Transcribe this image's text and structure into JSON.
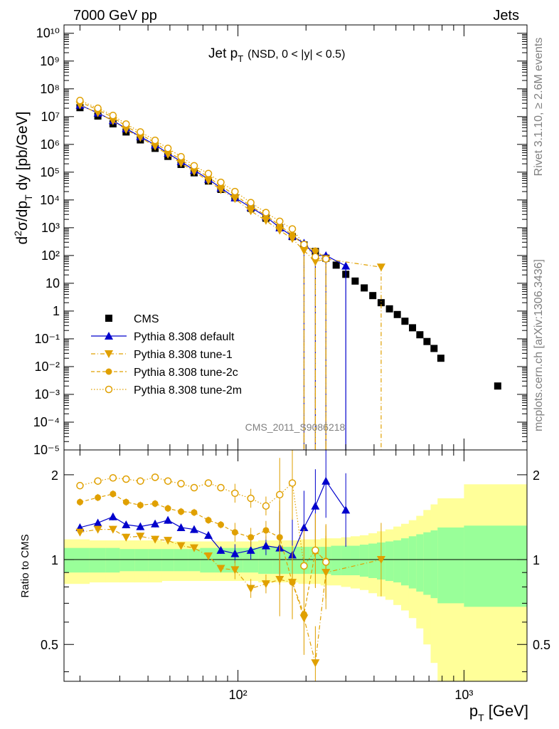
{
  "header": {
    "left": "7000 GeV pp",
    "right": "Jets"
  },
  "side_labels": {
    "rivet": "Rivet 3.1.10, ≥ 2.6M events",
    "mcplots": "mcplots.cern.ch [arXiv:1306.3436]"
  },
  "watermark": "CMS_2011_S9086218",
  "chart_data": [
    {
      "type": "scatter",
      "title": "Jet p_T (NSD, 0 < |y| < 0.5)",
      "title_main": "Jet p",
      "title_sub": "T",
      "title_rest": "(NSD,   0 < |y| < 0.5)",
      "ylabel": "d²σ/dp_T dy [pb/GeV]",
      "xlabel": "p_T [GeV]",
      "xscale": "log",
      "yscale": "log",
      "xlim": [
        17,
        1900
      ],
      "ylim": [
        1e-05,
        20000000000.0
      ],
      "y_tick_labels": [
        "10⁻⁵",
        "10⁻⁴",
        "10⁻³",
        "10⁻²",
        "10⁻¹",
        "1",
        "10",
        "10²",
        "10³",
        "10⁴",
        "10⁵",
        "10⁶",
        "10⁷",
        "10⁸",
        "10⁹",
        "10¹⁰"
      ],
      "x_tick_labels": [
        "10²",
        "10³"
      ],
      "legend_position": "lower-left",
      "series": [
        {
          "name": "CMS",
          "color": "#000000",
          "marker": "square",
          "x": [
            20,
            24,
            28,
            32,
            37,
            43,
            49,
            56,
            64,
            74,
            84,
            97,
            114,
            133,
            153,
            174,
            196,
            220,
            245,
            272,
            300,
            330,
            362,
            395,
            430,
            468,
            507,
            548,
            592,
            638,
            686,
            737,
            790,
            1410
          ],
          "y": [
            21000000.0,
            10500000.0,
            5500000.0,
            2800000.0,
            1450000.0,
            720000.0,
            370000.0,
            190000.0,
            95000.0,
            48000.0,
            24000.0,
            12000.0,
            5000,
            2200,
            1000,
            480,
            240,
            140,
            80,
            45,
            21,
            12,
            6.8,
            3.6,
            2.0,
            1.2,
            0.75,
            0.43,
            0.25,
            0.14,
            0.08,
            0.045,
            0.02,
            0.002
          ]
        },
        {
          "name": "Pythia 8.308 default",
          "color": "#0000cc",
          "marker": "triangle-up",
          "x": [
            20,
            24,
            28,
            32,
            37,
            43,
            49,
            56,
            64,
            74,
            84,
            97,
            114,
            133,
            153,
            174,
            196,
            220,
            245,
            300
          ],
          "y": [
            26000000.0,
            13500000.0,
            7200000.0,
            3700000.0,
            1900000.0,
            960000.0,
            480000.0,
            240000.0,
            118000.0,
            56000.0,
            27000.0,
            12000.0,
            5400,
            2500,
            1000,
            500,
            280,
            100,
            100,
            42
          ],
          "ratio": [
            1.3,
            1.35,
            1.42,
            1.33,
            1.31,
            1.34,
            1.38,
            1.3,
            1.28,
            1.22,
            1.08,
            1.05,
            1.08,
            1.12,
            1.1,
            1.04,
            1.3,
            1.55,
            1.9,
            1.5
          ]
        },
        {
          "name": "Pythia 8.308 tune-1",
          "color": "#e0a000",
          "marker": "triangle-down",
          "x": [
            20,
            24,
            28,
            32,
            37,
            43,
            49,
            56,
            64,
            74,
            84,
            97,
            114,
            133,
            153,
            174,
            196,
            220,
            245,
            430
          ],
          "y": [
            26000000.0,
            13600000.0,
            7000000.0,
            3400000.0,
            1750000.0,
            850000.0,
            430000.0,
            210000.0,
            104000.0,
            49000.0,
            23000.0,
            11000.0,
            4000,
            1800,
            800,
            400,
            150,
            60,
            75,
            38
          ],
          "ratio": [
            1.25,
            1.28,
            1.28,
            1.2,
            1.21,
            1.18,
            1.17,
            1.12,
            1.1,
            1.03,
            0.93,
            0.92,
            0.79,
            0.82,
            0.85,
            0.83,
            0.62,
            0.43,
            0.9,
            1.0
          ]
        },
        {
          "name": "Pythia 8.308 tune-2c",
          "color": "#e0a000",
          "marker": "circle",
          "x": [
            20,
            24,
            28,
            32,
            37,
            43,
            49,
            56,
            64,
            74,
            84,
            97,
            114,
            133,
            153,
            174,
            196,
            220,
            245
          ],
          "y": [
            33500000.0,
            17500000.0,
            9400000.0,
            4500000.0,
            2300000.0,
            1150000.0,
            560000.0,
            280000.0,
            140000.0,
            66000.0,
            32000.0,
            15000.0,
            6000,
            2800,
            1200,
            550,
            230,
            150,
            80
          ],
          "ratio": [
            1.6,
            1.66,
            1.71,
            1.6,
            1.56,
            1.58,
            1.52,
            1.48,
            1.47,
            1.38,
            1.33,
            1.25,
            1.2,
            1.27,
            1.2,
            0.83,
            0.64,
            1.07,
            0.99
          ]
        },
        {
          "name": "Pythia 8.308 tune-2m",
          "color": "#e0a000",
          "marker": "circle-open",
          "x": [
            20,
            24,
            28,
            32,
            37,
            43,
            49,
            56,
            64,
            74,
            84,
            97,
            114,
            133,
            153,
            174,
            196,
            220,
            245
          ],
          "y": [
            38000000.0,
            20000000.0,
            11000000.0,
            5400000.0,
            2800000.0,
            1400000.0,
            720000.0,
            360000.0,
            170000.0,
            89000.0,
            43000.0,
            20000.0,
            8000,
            3500,
            1700,
            900,
            250,
            90,
            75
          ],
          "ratio": [
            1.83,
            1.9,
            1.95,
            1.93,
            1.9,
            1.96,
            1.9,
            1.86,
            1.8,
            1.87,
            1.8,
            1.72,
            1.65,
            1.55,
            1.7,
            1.87,
            0.95,
            1.08,
            0.98
          ]
        }
      ]
    },
    {
      "type": "scatter",
      "title": "",
      "ylabel": "Ratio to CMS",
      "xlabel": "p_T [GeV]",
      "xscale": "log",
      "yscale": "log",
      "xlim": [
        17,
        1900
      ],
      "ylim": [
        0.37,
        2.45
      ],
      "y_tick_labels": [
        "0.5",
        "1",
        "2"
      ],
      "reference_line": 1.0,
      "bands": {
        "inner_color": "#99ff99",
        "outer_color": "#ffff99",
        "x_edges": [
          17,
          22,
          26,
          30,
          35,
          40,
          46,
          52,
          60,
          68,
          79,
          90,
          105,
          123,
          143,
          163,
          185,
          208,
          232,
          258,
          286,
          315,
          346,
          378,
          412,
          449,
          487,
          527,
          570,
          615,
          661,
          712,
          764,
          1000,
          1900
        ],
        "inner_halfwidth": [
          0.1,
          0.1,
          0.1,
          0.09,
          0.09,
          0.09,
          0.09,
          0.09,
          0.09,
          0.1,
          0.1,
          0.1,
          0.1,
          0.11,
          0.11,
          0.11,
          0.11,
          0.11,
          0.11,
          0.12,
          0.12,
          0.12,
          0.13,
          0.14,
          0.15,
          0.16,
          0.17,
          0.19,
          0.21,
          0.23,
          0.25,
          0.27,
          0.3,
          0.32
        ],
        "outer_halfwidth": [
          0.18,
          0.17,
          0.17,
          0.17,
          0.17,
          0.17,
          0.16,
          0.16,
          0.16,
          0.16,
          0.16,
          0.16,
          0.16,
          0.17,
          0.17,
          0.17,
          0.18,
          0.18,
          0.19,
          0.19,
          0.2,
          0.21,
          0.22,
          0.24,
          0.26,
          0.28,
          0.31,
          0.34,
          0.38,
          0.43,
          0.5,
          0.57,
          0.65,
          0.85
        ]
      }
    }
  ]
}
